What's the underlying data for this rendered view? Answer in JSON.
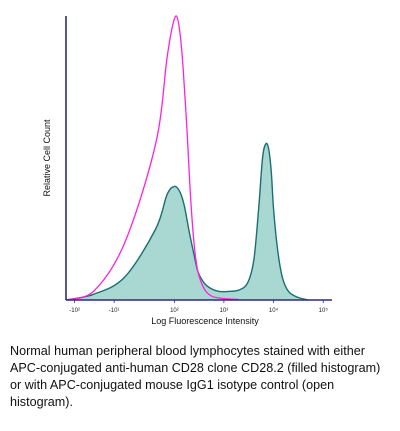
{
  "chart_data": {
    "type": "area",
    "title": "",
    "xlabel": "Log Fluorescence Intensity",
    "ylabel": "Relative Cell Count",
    "x_scale": "biexponential",
    "x_ticks": [
      {
        "label": "-10²",
        "pos": -100
      },
      {
        "label": "-10¹",
        "pos": -10
      },
      {
        "label": "10²",
        "pos": 100
      },
      {
        "label": "10³",
        "pos": 1000
      },
      {
        "label": "10⁴",
        "pos": 10000
      },
      {
        "label": "10⁵",
        "pos": 100000
      }
    ],
    "ylim": [
      0,
      100
    ],
    "grid": false,
    "series": [
      {
        "style": "open",
        "color": "#ff22dd",
        "x": [
          -150,
          -40,
          0,
          40,
          70,
          90,
          110,
          130,
          150,
          180,
          210,
          250,
          300,
          400,
          550,
          800,
          1200,
          2000
        ],
        "y": [
          0,
          3,
          20,
          55,
          85,
          96,
          100,
          94,
          82,
          60,
          38,
          20,
          10,
          4,
          1.5,
          0.7,
          0.4,
          0.2
        ]
      },
      {
        "style": "filled",
        "color": "#1a6f74",
        "fill": "#a9d7d2",
        "x": [
          -150,
          -40,
          0,
          40,
          70,
          100,
          130,
          160,
          200,
          250,
          300,
          400,
          550,
          800,
          1200,
          2000,
          3000,
          4000,
          5000,
          6000,
          7000,
          8000,
          9000,
          10000,
          12000,
          15000,
          20000,
          30000,
          50000
        ],
        "y": [
          0,
          2,
          8,
          25,
          37,
          40,
          38,
          33,
          24,
          16,
          10,
          6,
          4,
          3,
          3,
          3.5,
          6,
          14,
          32,
          50,
          55,
          53,
          45,
          32,
          18,
          8,
          3,
          1,
          0
        ]
      }
    ]
  },
  "caption": "Normal human peripheral blood lymphocytes stained with either APC-conjugated anti-human CD28 clone CD28.2 (filled histogram) or with APC-conjugated mouse IgG1 isotype control (open histogram)."
}
